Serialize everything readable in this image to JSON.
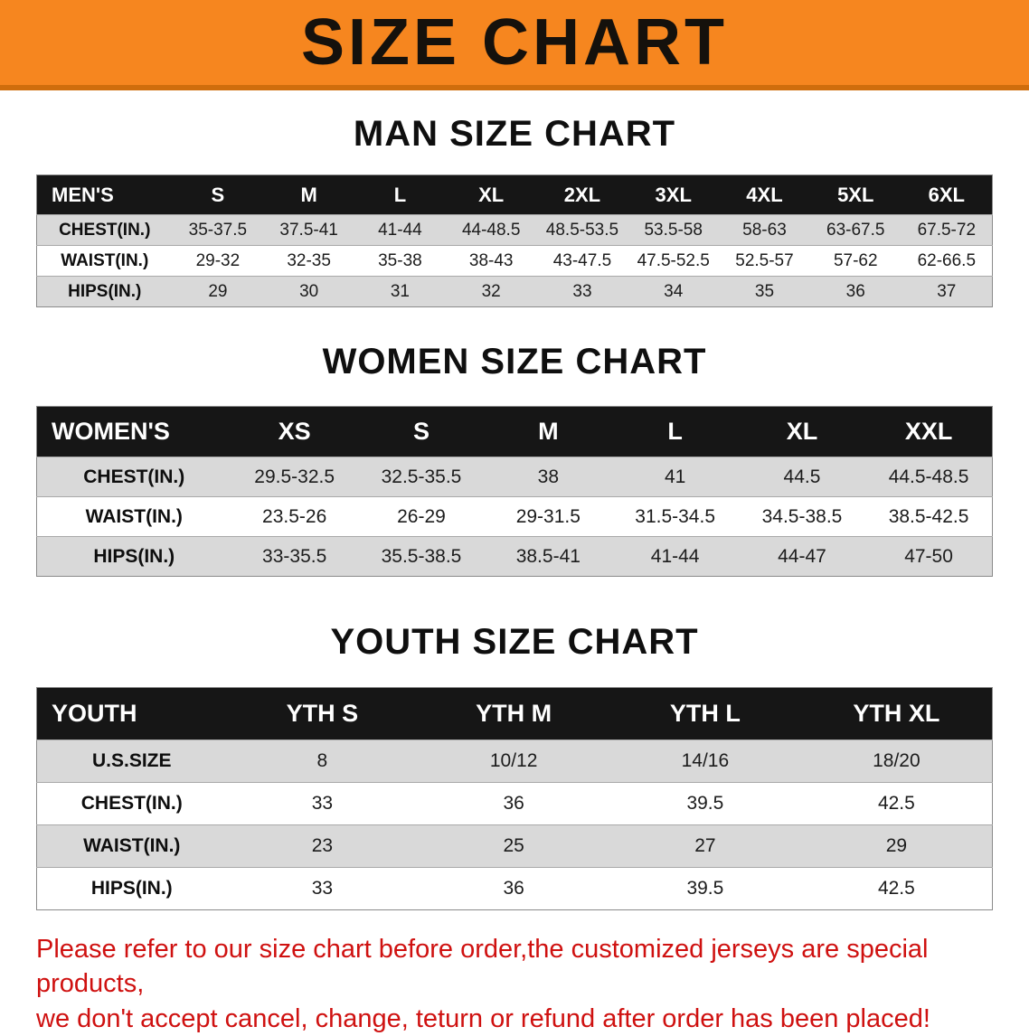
{
  "banner": {
    "title": "SIZE CHART"
  },
  "sections": [
    {
      "id": "men",
      "heading": "MAN SIZE CHART",
      "header": [
        "MEN'S",
        "S",
        "M",
        "L",
        "XL",
        "2XL",
        "3XL",
        "4XL",
        "5XL",
        "6XL"
      ],
      "rows": [
        {
          "label": "CHEST(IN.)",
          "values": [
            "35-37.5",
            "37.5-41",
            "41-44",
            "44-48.5",
            "48.5-53.5",
            "53.5-58",
            "58-63",
            "63-67.5",
            "67.5-72"
          ]
        },
        {
          "label": "WAIST(IN.)",
          "values": [
            "29-32",
            "32-35",
            "35-38",
            "38-43",
            "43-47.5",
            "47.5-52.5",
            "52.5-57",
            "57-62",
            "62-66.5"
          ]
        },
        {
          "label": "HIPS(IN.)",
          "values": [
            "29",
            "30",
            "31",
            "32",
            "33",
            "34",
            "35",
            "36",
            "37"
          ]
        }
      ]
    },
    {
      "id": "women",
      "heading": "WOMEN SIZE CHART",
      "header": [
        "WOMEN'S",
        "XS",
        "S",
        "M",
        "L",
        "XL",
        "XXL"
      ],
      "rows": [
        {
          "label": "CHEST(IN.)",
          "values": [
            "29.5-32.5",
            "32.5-35.5",
            "38",
            "41",
            "44.5",
            "44.5-48.5"
          ]
        },
        {
          "label": "WAIST(IN.)",
          "values": [
            "23.5-26",
            "26-29",
            "29-31.5",
            "31.5-34.5",
            "34.5-38.5",
            "38.5-42.5"
          ]
        },
        {
          "label": "HIPS(IN.)",
          "values": [
            "33-35.5",
            "35.5-38.5",
            "38.5-41",
            "41-44",
            "44-47",
            "47-50"
          ]
        }
      ]
    },
    {
      "id": "youth",
      "heading": "YOUTH SIZE CHART",
      "header": [
        "YOUTH",
        "YTH S",
        "YTH M",
        "YTH L",
        "YTH XL"
      ],
      "rows": [
        {
          "label": "U.S.SIZE",
          "values": [
            "8",
            "10/12",
            "14/16",
            "18/20"
          ]
        },
        {
          "label": "CHEST(IN.)",
          "values": [
            "33",
            "36",
            "39.5",
            "42.5"
          ]
        },
        {
          "label": "WAIST(IN.)",
          "values": [
            "23",
            "25",
            "27",
            "29"
          ]
        },
        {
          "label": "HIPS(IN.)",
          "values": [
            "33",
            "36",
            "39.5",
            "42.5"
          ]
        }
      ]
    }
  ],
  "disclaimer": {
    "line1": "Please refer to our size chart before order,the customized jerseys are special products,",
    "line2": "we don't accept cancel, change, teturn or refund after order has been placed!"
  }
}
